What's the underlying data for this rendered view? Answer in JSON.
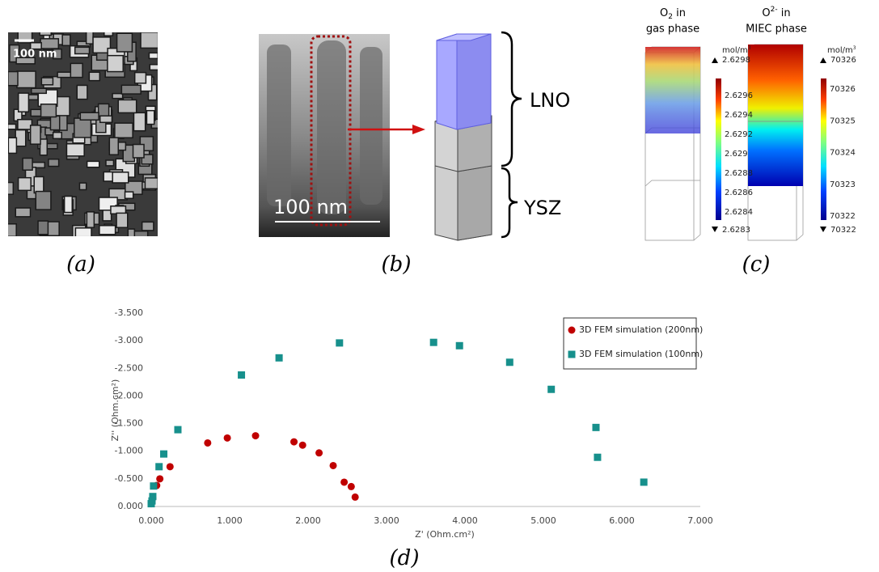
{
  "panels": {
    "a": {
      "scale_bar": "100 nm",
      "label": "(a)"
    },
    "b": {
      "scale_bar": "100 nm",
      "upper_layer": "LNO",
      "lower_layer": "YSZ",
      "label": "(b)"
    },
    "c": {
      "left": {
        "species": "O",
        "sub": "2",
        "title_rest": " in",
        "phase": "gas phase",
        "unit": "mol/m",
        "unit_sup": "3",
        "max": "2.6298",
        "min": "2.6283",
        "ticks": [
          "2.6296",
          "2.6294",
          "2.6292",
          "2.629",
          "2.6288",
          "2.6286",
          "2.6284"
        ]
      },
      "right": {
        "species": "O",
        "sup": "2-",
        "title_rest": " in",
        "phase": "MIEC phase",
        "unit": "mol/m",
        "unit_sup": "3",
        "max": "70326",
        "min": "70322",
        "ticks": [
          "70326",
          "70325",
          "70324",
          "70323",
          "70322"
        ]
      },
      "label": "(c)"
    },
    "d": {
      "label": "(d)"
    }
  },
  "chart_data": {
    "type": "scatter",
    "x_label": "Z' (Ohm.cm²)",
    "y_label": "Z'' (Ohm.cm²)",
    "xlim": [
      0,
      7
    ],
    "ylim": [
      0,
      -3.5
    ],
    "xticks": [
      {
        "value": 0,
        "label": "0.000"
      },
      {
        "value": 1,
        "label": "1.000"
      },
      {
        "value": 2,
        "label": "2.000"
      },
      {
        "value": 3,
        "label": "3.000"
      },
      {
        "value": 4,
        "label": "4.000"
      },
      {
        "value": 5,
        "label": "5.000"
      },
      {
        "value": 6,
        "label": "6.000"
      },
      {
        "value": 7,
        "label": "7.000"
      }
    ],
    "yticks": [
      {
        "value": -3.5,
        "label": "-3.500"
      },
      {
        "value": -3,
        "label": "-3.000"
      },
      {
        "value": -2.5,
        "label": "-2.500"
      },
      {
        "value": -2,
        "label": "-2.000"
      },
      {
        "value": -1.5,
        "label": "-1.500"
      },
      {
        "value": -1,
        "label": "-1.000"
      },
      {
        "value": -0.5,
        "label": "-0.500"
      },
      {
        "value": 0,
        "label": "0.000"
      }
    ],
    "legend": "top-right",
    "series": [
      {
        "name": "3D FEM simulation (200nm)",
        "color": "#c00000",
        "marker": "circle",
        "x": [
          0.0,
          0.01,
          0.02,
          0.07,
          0.11,
          0.24,
          0.72,
          0.97,
          1.33,
          1.82,
          1.93,
          2.14,
          2.32,
          2.46,
          2.55,
          2.6
        ],
        "values": [
          -0.05,
          -0.1,
          -0.15,
          -0.38,
          -0.5,
          -0.72,
          -1.15,
          -1.24,
          -1.28,
          -1.17,
          -1.11,
          -0.97,
          -0.74,
          -0.44,
          -0.36,
          -0.17
        ]
      },
      {
        "name": "3D FEM simulation (100nm)",
        "color": "#17908c",
        "marker": "square",
        "x": [
          0.0,
          0.01,
          0.02,
          0.03,
          0.1,
          0.16,
          0.34,
          1.15,
          1.63,
          2.4,
          3.6,
          3.93,
          4.57,
          5.1,
          5.67,
          5.69,
          6.28
        ],
        "values": [
          -0.05,
          -0.1,
          -0.18,
          -0.37,
          -0.72,
          -0.95,
          -1.39,
          -2.38,
          -2.69,
          -2.96,
          -2.97,
          -2.91,
          -2.61,
          -2.12,
          -1.43,
          -0.89,
          -0.44
        ]
      }
    ]
  }
}
